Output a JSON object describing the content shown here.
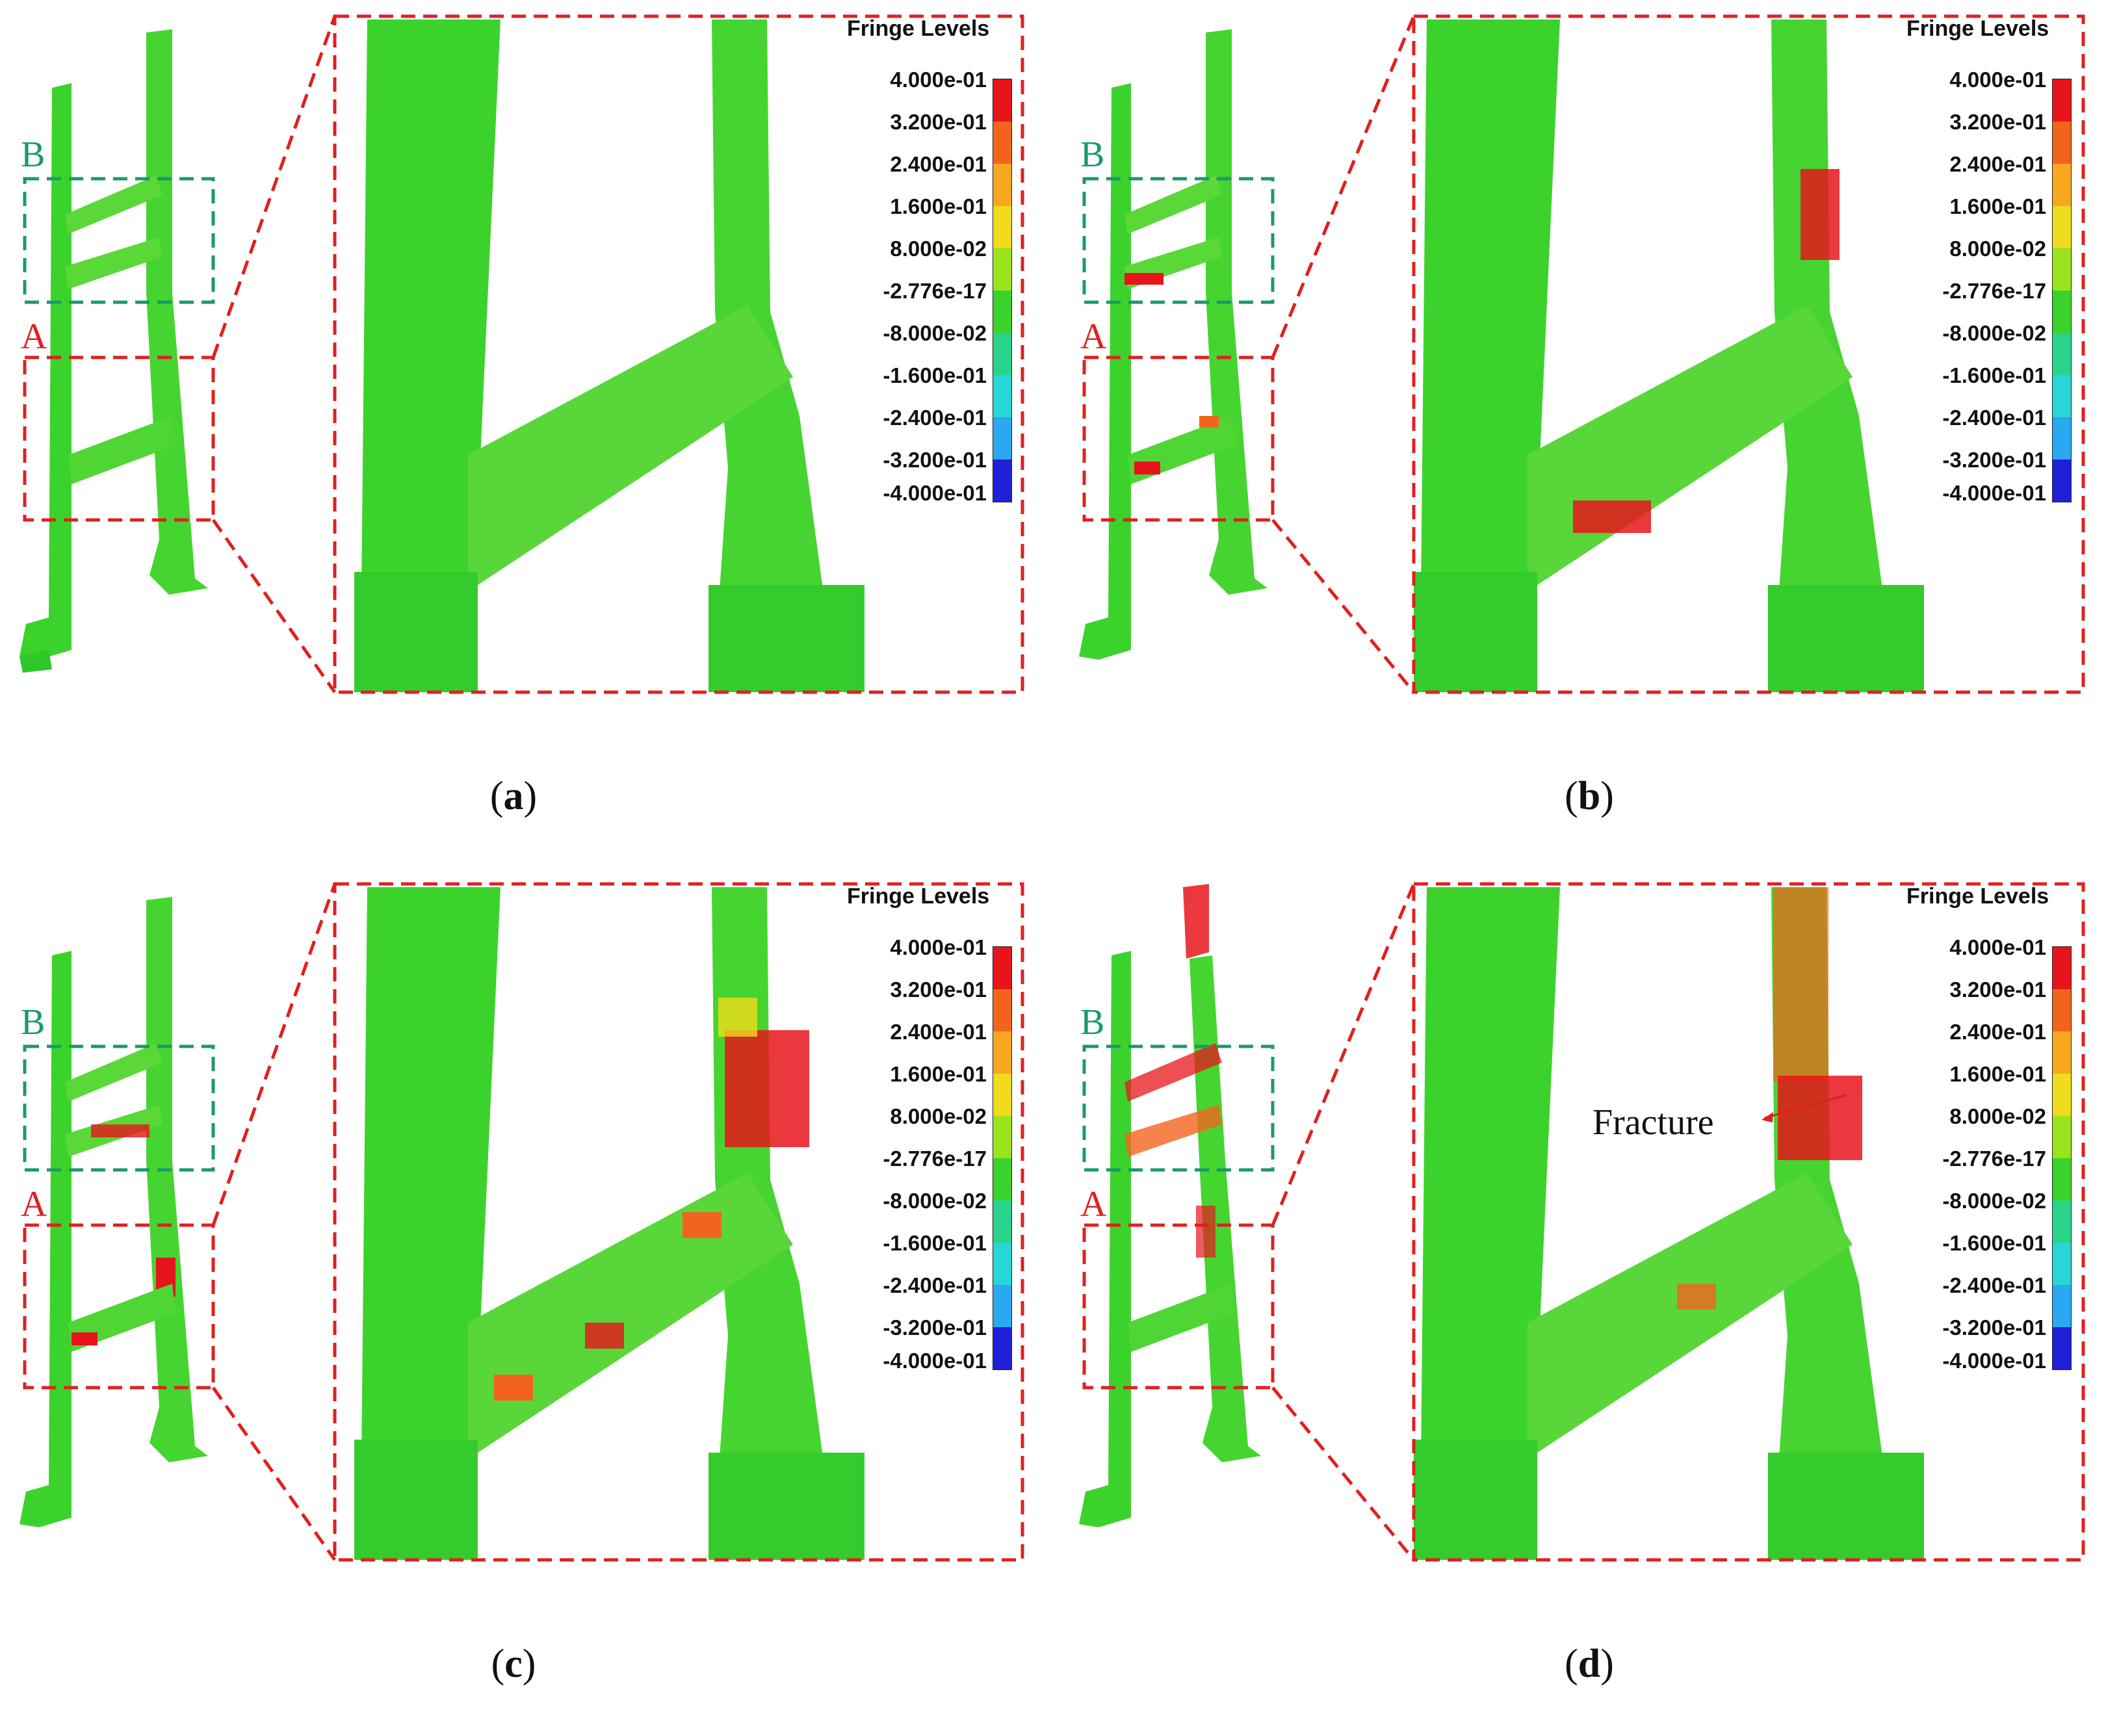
{
  "legend": {
    "title": "Fringe Levels",
    "ticks": [
      "4.000e-01",
      "3.200e-01",
      "2.400e-01",
      "1.600e-01",
      "8.000e-02",
      "-2.776e-17",
      "-8.000e-02",
      "-1.600e-01",
      "-2.400e-01",
      "-3.200e-01",
      "-4.000e-01"
    ],
    "colors": [
      "#e8141c",
      "#f2641e",
      "#f7a81f",
      "#f0dc1c",
      "#9be41c",
      "#3cd22c",
      "#29d48a",
      "#27d6d6",
      "#2aa8f0",
      "#2a5ae8",
      "#2020d8"
    ]
  },
  "region_labels": {
    "a": "A",
    "b": "B"
  },
  "panels": [
    {
      "id": "a",
      "caption_open": "(",
      "caption_letter": "a",
      "caption_close": ")",
      "damage": "low"
    },
    {
      "id": "b",
      "caption_open": "(",
      "caption_letter": "b",
      "caption_close": ")",
      "damage": "moderate"
    },
    {
      "id": "c",
      "caption_open": "(",
      "caption_letter": "c",
      "caption_close": ")",
      "damage": "high"
    },
    {
      "id": "d",
      "caption_open": "(",
      "caption_letter": "d",
      "caption_close": ")",
      "damage": "fracture"
    }
  ],
  "fracture_label": "Fracture",
  "colors": {
    "model_green": "#3cd22c",
    "box_red": "#e02020",
    "box_green": "#1a9a6a"
  }
}
